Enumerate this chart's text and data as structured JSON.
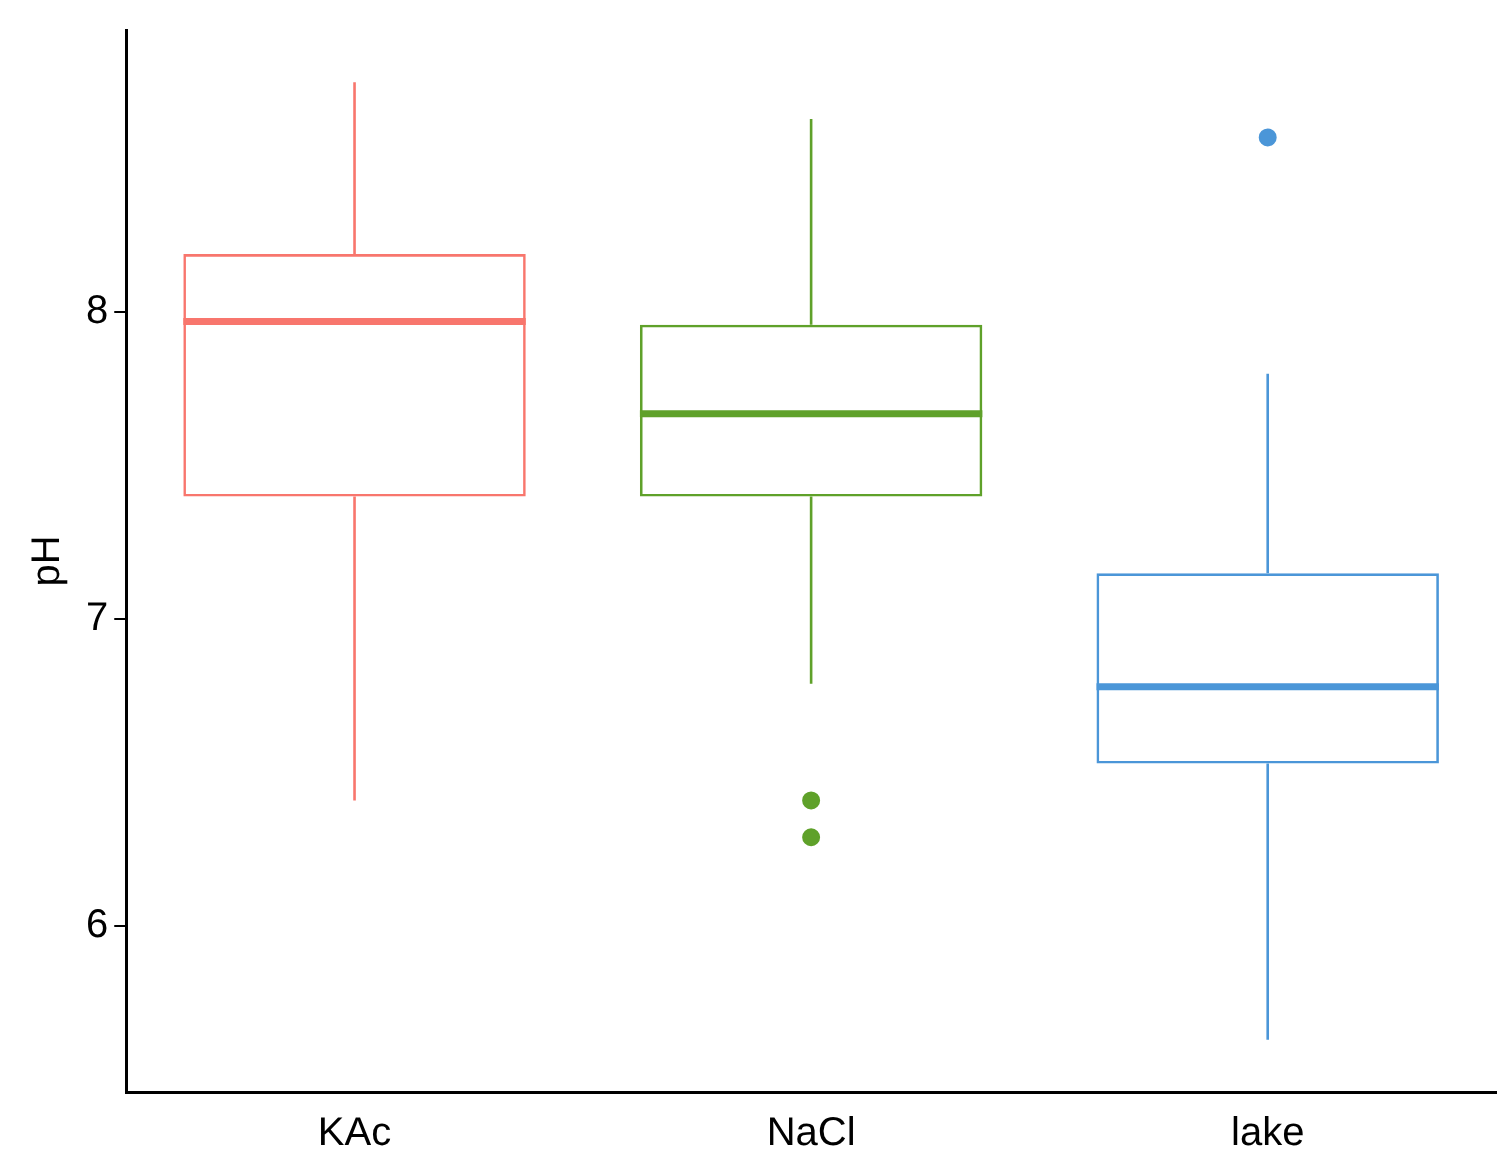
{
  "chart_data": {
    "type": "box",
    "ylabel": "pH",
    "categories": [
      "KAc",
      "NaCl",
      "lake"
    ],
    "colors": [
      "#f8766d",
      "#5fa12a",
      "#4b96d8"
    ],
    "boxes": [
      {
        "low": 6.41,
        "q1": 7.4,
        "median": 7.97,
        "q3": 8.19,
        "high": 8.75
      },
      {
        "low": 6.79,
        "q1": 7.4,
        "median": 7.67,
        "q3": 7.96,
        "high": 8.63,
        "outliers": [
          6.41,
          6.29
        ]
      },
      {
        "low": 5.63,
        "q1": 6.53,
        "median": 6.78,
        "q3": 7.15,
        "high": 7.8,
        "outliers": [
          8.57
        ]
      }
    ],
    "ylim": [
      5.46,
      8.92
    ],
    "yticks": [
      6,
      7,
      8
    ],
    "grid": false,
    "legend": false
  }
}
